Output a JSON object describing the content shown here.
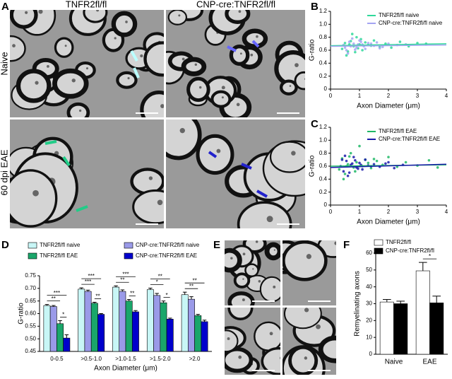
{
  "figure": {
    "panel_labels": [
      "A",
      "B",
      "C",
      "D",
      "E",
      "F"
    ],
    "micrograph_columns": [
      "TNFR2fl/fl",
      "CNP-cre:TNFR2fl/fl"
    ],
    "micrograph_rows": [
      "Naive",
      "60 dpi EAE"
    ]
  },
  "chart_data": [
    {
      "type": "scatter",
      "y_label": "G-ratio",
      "x_label": "Axon Diameter (μm)",
      "xlim": [
        0,
        4
      ],
      "xticks": [
        0,
        1,
        2,
        3,
        4
      ],
      "ylim": [
        0,
        1.2
      ],
      "yticks": [
        0,
        0.2,
        0.4,
        0.6,
        0.8,
        {
          "value": 1,
          "label": "1.0"
        },
        1.2
      ],
      "series": [
        {
          "name": "TNFR2fl/fl naive",
          "color": "#2fd89a",
          "x": [
            0.4,
            0.5,
            0.6,
            0.7,
            0.8,
            0.9,
            1.0,
            1.1,
            1.2,
            1.3,
            1.5,
            1.7,
            1.9,
            2.1,
            2.4,
            2.7,
            3.0,
            3.3,
            0.55,
            0.75,
            0.95,
            1.05,
            0.65,
            0.85,
            1.4
          ],
          "values": [
            0.62,
            0.71,
            0.58,
            0.74,
            0.66,
            0.8,
            0.69,
            0.6,
            0.72,
            0.68,
            0.75,
            0.65,
            0.7,
            0.64,
            0.73,
            0.66,
            0.71,
            0.7,
            0.52,
            0.85,
            0.63,
            0.77,
            0.69,
            0.57,
            0.67
          ]
        },
        {
          "name": "CNP-cre:TNFR2fl/fl naive",
          "color": "#a4a4f2",
          "x": [
            0.45,
            0.55,
            0.65,
            0.7,
            0.8,
            0.9,
            1.0,
            1.1,
            1.2,
            1.3,
            1.5,
            1.6,
            1.8,
            2.0,
            2.3,
            0.6,
            0.75,
            0.85,
            0.95,
            1.05,
            1.15,
            0.5,
            1.4,
            1.7,
            2.6
          ],
          "values": [
            0.68,
            0.6,
            0.73,
            0.66,
            0.7,
            0.64,
            0.75,
            0.69,
            0.62,
            0.71,
            0.67,
            0.72,
            0.65,
            0.7,
            0.68,
            0.55,
            0.78,
            0.61,
            0.69,
            0.73,
            0.66,
            0.64,
            0.7,
            0.63,
            0.69
          ]
        }
      ],
      "fits": [
        {
          "color": "#2fd89a",
          "x": [
            0,
            4
          ],
          "values": [
            0.67,
            0.7
          ]
        },
        {
          "color": "#a4a4f2",
          "x": [
            0,
            4
          ],
          "values": [
            0.66,
            0.68
          ]
        }
      ]
    },
    {
      "type": "scatter",
      "y_label": "G-ratio",
      "x_label": "Axon Diameter (μm)",
      "xlim": [
        0,
        4
      ],
      "xticks": [
        0,
        1,
        2,
        3,
        4
      ],
      "ylim": [
        0,
        1.2
      ],
      "yticks": [
        0,
        0.2,
        0.4,
        0.6,
        0.8,
        {
          "value": 1,
          "label": "1.0"
        },
        1.2
      ],
      "series": [
        {
          "name": "TNFR2fl/fl EAE",
          "color": "#1fb866",
          "x": [
            0.3,
            0.4,
            0.5,
            0.6,
            0.7,
            0.8,
            0.9,
            1.0,
            1.1,
            1.2,
            1.4,
            1.6,
            1.8,
            2.0,
            2.3,
            2.6,
            3.0,
            3.4,
            3.7,
            0.45,
            0.65,
            0.85,
            1.3,
            1.5,
            0.55
          ],
          "values": [
            0.55,
            0.72,
            0.48,
            0.63,
            0.8,
            0.58,
            0.66,
            0.91,
            0.6,
            0.7,
            0.57,
            0.68,
            0.62,
            0.74,
            0.59,
            0.66,
            0.61,
            0.69,
            0.58,
            0.4,
            0.75,
            0.52,
            0.65,
            0.71,
            0.6
          ]
        },
        {
          "name": "CNP-cre:TNFR2fl/fl EAE",
          "color": "#1a1aaa",
          "x": [
            0.35,
            0.45,
            0.55,
            0.6,
            0.7,
            0.8,
            0.9,
            1.0,
            1.1,
            1.2,
            1.3,
            1.5,
            1.7,
            2.0,
            2.2,
            0.5,
            0.65,
            0.75,
            0.85,
            0.95,
            1.05,
            1.4,
            1.9,
            2.5,
            0.4
          ],
          "values": [
            0.6,
            0.52,
            0.68,
            0.45,
            0.62,
            0.74,
            0.58,
            0.65,
            0.55,
            0.7,
            0.61,
            0.63,
            0.59,
            0.66,
            0.57,
            0.76,
            0.5,
            0.64,
            0.69,
            0.56,
            0.62,
            0.6,
            0.64,
            0.62,
            0.7
          ]
        }
      ],
      "fits": [
        {
          "color": "#1fb866",
          "x": [
            0,
            4
          ],
          "values": [
            0.6,
            0.62
          ]
        },
        {
          "color": "#1a1aaa",
          "x": [
            0,
            4
          ],
          "values": [
            0.58,
            0.63
          ]
        }
      ]
    },
    {
      "type": "bar",
      "y_label": "G-ratio",
      "x_label": "Axon Diameter (μm)",
      "categories": [
        "0-0.5",
        ">0.5-1.0",
        ">1.0-1.5",
        ">1.5-2.0",
        ">2.0"
      ],
      "ylim": [
        0.45,
        0.75
      ],
      "yticks": [
        0.45,
        {
          "value": 0.5,
          "label": "0.50"
        },
        0.55,
        {
          "value": 0.6,
          "label": "0.60"
        },
        0.65,
        {
          "value": 0.7,
          "label": "0.70"
        },
        0.75
      ],
      "series": [
        {
          "name": "TNFR2fl/fl naive",
          "color": "#c8f6f6",
          "values": [
            0.632,
            0.697,
            0.705,
            0.695,
            0.675
          ],
          "errors": [
            0.004,
            0.005,
            0.005,
            0.006,
            0.01
          ]
        },
        {
          "name": "CNP-cre:TNFR2fl/fl naive",
          "color": "#9a9ae8",
          "values": [
            0.628,
            0.688,
            0.688,
            0.672,
            0.657
          ],
          "errors": [
            0.004,
            0.005,
            0.006,
            0.008,
            0.01
          ]
        },
        {
          "name": "TNFR2fl/fl EAE",
          "color": "#1aa66a",
          "values": [
            0.56,
            0.641,
            0.65,
            0.643,
            0.592
          ],
          "errors": [
            0.012,
            0.004,
            0.006,
            0.007,
            0.005
          ]
        },
        {
          "name": "CNP-cre:TNFR2fl/fl EAE",
          "color": "#0000cc",
          "values": [
            0.503,
            0.597,
            0.607,
            0.578,
            0.568
          ],
          "errors": [
            0.013,
            0.003,
            0.005,
            0.004,
            0.006
          ]
        }
      ],
      "significance": [
        {
          "group": 0,
          "from": 2,
          "to": 3,
          "label": "*"
        },
        {
          "group": 0,
          "from": 0,
          "to": 2,
          "label": "**"
        },
        {
          "group": 0,
          "from": 0,
          "to": 3,
          "label": "***"
        },
        {
          "group": 1,
          "from": 2,
          "to": 3,
          "label": "**"
        },
        {
          "group": 1,
          "from": 0,
          "to": 2,
          "label": "***"
        },
        {
          "group": 1,
          "from": 0,
          "to": 3,
          "label": "***"
        },
        {
          "group": 2,
          "from": 2,
          "to": 3,
          "label": "**"
        },
        {
          "group": 2,
          "from": 0,
          "to": 2,
          "label": "**"
        },
        {
          "group": 2,
          "from": 0,
          "to": 3,
          "label": "***"
        },
        {
          "group": 3,
          "from": 2,
          "to": 3,
          "label": "*"
        },
        {
          "group": 3,
          "from": 0,
          "to": 2,
          "label": "*"
        },
        {
          "group": 3,
          "from": 0,
          "to": 3,
          "label": "**"
        },
        {
          "group": 4,
          "from": 0,
          "to": 2,
          "label": "**"
        },
        {
          "group": 4,
          "from": 0,
          "to": 3,
          "label": "**"
        }
      ]
    },
    {
      "type": "bar",
      "y_label": "Remyelinating axons",
      "categories": [
        "Naive",
        "EAE"
      ],
      "ylim": [
        0,
        60
      ],
      "yticks": [
        0,
        10,
        20,
        30,
        40,
        50,
        60
      ],
      "series": [
        {
          "name": "TNFR2fl/fl",
          "color": "#ffffff",
          "values": [
            31,
            49.5
          ],
          "errors": [
            1.5,
            5
          ]
        },
        {
          "name": "CNP-cre:TNFR2fl/fl",
          "color": "#000000",
          "values": [
            30,
            30.5
          ],
          "errors": [
            1.5,
            4
          ]
        }
      ],
      "significance": [
        {
          "group": 1,
          "from": 0,
          "to": 1,
          "label": "*"
        }
      ]
    }
  ]
}
